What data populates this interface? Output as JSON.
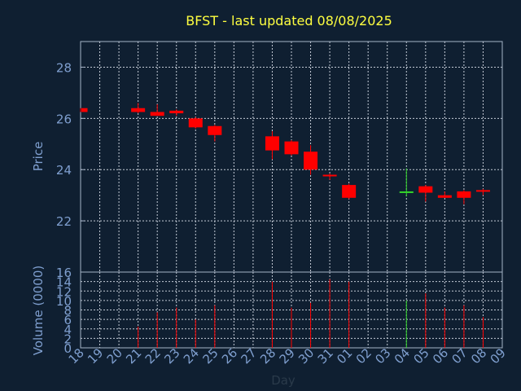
{
  "chart_data": {
    "type": "candlestick",
    "title": "BFST - last updated 08/08/2025",
    "xlabel": "Day",
    "price_panel": {
      "ylabel": "Price",
      "ylim": [
        20,
        29
      ],
      "yticks": [
        "22",
        "24",
        "26",
        "28"
      ],
      "grid": true
    },
    "volume_panel": {
      "ylabel": "Volume (0000)",
      "ylim": [
        0,
        16
      ],
      "yticks": [
        "0",
        "2",
        "4",
        "6",
        "8",
        "10",
        "12",
        "14",
        "16"
      ],
      "grid": true
    },
    "x_labels": [
      "18",
      "19",
      "20",
      "21",
      "22",
      "23",
      "24",
      "25",
      "26",
      "27",
      "28",
      "29",
      "30",
      "31",
      "01",
      "02",
      "03",
      "04",
      "05",
      "06",
      "07",
      "08",
      "09"
    ],
    "series": [
      {
        "day": "18",
        "open": 26.4,
        "high": 26.4,
        "low": 26.25,
        "close": 26.25,
        "volume": 0
      },
      {
        "day": "21",
        "open": 26.4,
        "high": 26.6,
        "low": 26.2,
        "close": 26.25,
        "volume": 4.5
      },
      {
        "day": "22",
        "open": 26.25,
        "high": 26.55,
        "low": 26.1,
        "close": 26.1,
        "volume": 7.5
      },
      {
        "day": "23",
        "open": 26.3,
        "high": 26.35,
        "low": 26.1,
        "close": 26.2,
        "volume": 8.5
      },
      {
        "day": "24",
        "open": 26.0,
        "high": 26.05,
        "low": 25.6,
        "close": 25.65,
        "volume": 6.0
      },
      {
        "day": "25",
        "open": 25.7,
        "high": 25.75,
        "low": 25.1,
        "close": 25.35,
        "volume": 9.0
      },
      {
        "day": "28",
        "open": 25.3,
        "high": 25.5,
        "low": 24.4,
        "close": 24.75,
        "volume": 14.0
      },
      {
        "day": "29",
        "open": 25.1,
        "high": 25.15,
        "low": 24.55,
        "close": 24.6,
        "volume": 8.5
      },
      {
        "day": "30",
        "open": 24.7,
        "high": 24.95,
        "low": 23.8,
        "close": 24.0,
        "volume": 9.5
      },
      {
        "day": "31",
        "open": 23.8,
        "high": 23.85,
        "low": 23.6,
        "close": 23.75,
        "volume": 14.5
      },
      {
        "day": "01",
        "open": 23.4,
        "high": 23.45,
        "low": 22.85,
        "close": 22.9,
        "volume": 14.0
      },
      {
        "day": "04",
        "open": 23.1,
        "high": 24.05,
        "low": 22.95,
        "close": 23.15,
        "volume": 10.0
      },
      {
        "day": "05",
        "open": 23.35,
        "high": 23.4,
        "low": 22.75,
        "close": 23.1,
        "volume": 11.5
      },
      {
        "day": "06",
        "open": 23.0,
        "high": 23.15,
        "low": 22.9,
        "close": 22.9,
        "volume": 8.5
      },
      {
        "day": "07",
        "open": 23.15,
        "high": 23.2,
        "low": 22.65,
        "close": 22.9,
        "volume": 9.0
      },
      {
        "day": "08",
        "open": 23.2,
        "high": 23.25,
        "low": 23.0,
        "close": 23.15,
        "volume": 6.5
      }
    ],
    "colors": {
      "background": "#0f1f31",
      "title": "#ffff40",
      "axis_text": "#7f9fcf",
      "frame": "#a6b4c8",
      "grid": "#c4cbd6",
      "down": "#ff0000",
      "up": "#34d52a"
    }
  }
}
